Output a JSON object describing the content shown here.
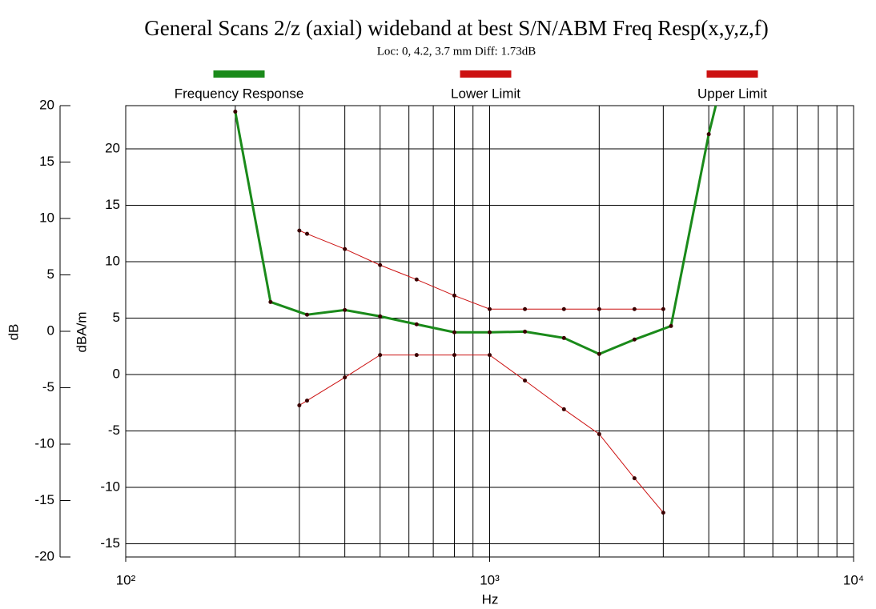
{
  "chart_data": {
    "type": "line",
    "title": "General Scans 2/z (axial) wideband at best S/N/ABM Freq Resp(x,y,z,f)",
    "subtitle": "Loc: 0, 4.2, 3.7 mm Diff: 1.73dB",
    "x_label": "Hz",
    "y_label": "dB",
    "y2_label": "dBA/m",
    "log_x": true,
    "grid": true,
    "legend": "top",
    "xlim": [
      100,
      10000
    ],
    "xticks": [
      {
        "value": 100,
        "label": "10²"
      },
      {
        "value": 1000,
        "label": "10³"
      },
      {
        "value": 10000,
        "label": "10⁴"
      }
    ],
    "xgrid": [
      200,
      300,
      400,
      500,
      600,
      700,
      800,
      900,
      1000,
      2000,
      3000,
      4000,
      5000,
      6000,
      7000,
      8000,
      9000
    ],
    "ylim": [
      -20,
      20
    ],
    "yticks": [
      -20,
      -15,
      -10,
      -5,
      0,
      5,
      10,
      15,
      20
    ],
    "y2lim": [
      -16.17,
      23.83
    ],
    "y2ticks": [
      -15,
      -10,
      -5,
      0,
      5,
      10,
      15,
      20
    ],
    "series": [
      {
        "name": "Frequency Response",
        "color": "#1a8a1a",
        "axis": "y2",
        "x": [
          200,
          250,
          315,
          400,
          500,
          630,
          800,
          1000,
          1250,
          1600,
          2000,
          2500,
          3150,
          4000,
          5000
        ],
        "values": [
          23.3,
          6.43,
          5.3,
          5.72,
          5.16,
          4.45,
          3.74,
          3.74,
          3.8,
          3.24,
          1.82,
          3.1,
          4.3,
          21.3,
          34
        ]
      },
      {
        "name": "Lower Limit",
        "color": "#cc1111",
        "axis": "y2",
        "x": [
          300,
          315,
          400,
          500,
          630,
          800,
          1000,
          1250,
          1600,
          2000,
          2500,
          3000
        ],
        "values": [
          -2.73,
          -2.31,
          -0.26,
          1.73,
          1.73,
          1.73,
          1.73,
          -0.53,
          -3.08,
          -5.28,
          -9.19,
          -12.24
        ]
      },
      {
        "name": "Upper Limit",
        "color": "#cc1111",
        "axis": "y2",
        "x": [
          300,
          315,
          400,
          500,
          630,
          800,
          1000,
          1250,
          1600,
          2000,
          2500,
          3000
        ],
        "values": [
          12.76,
          12.47,
          11.12,
          9.7,
          8.42,
          7.0,
          5.8,
          5.8,
          5.8,
          5.8,
          5.8,
          5.8
        ]
      }
    ]
  }
}
